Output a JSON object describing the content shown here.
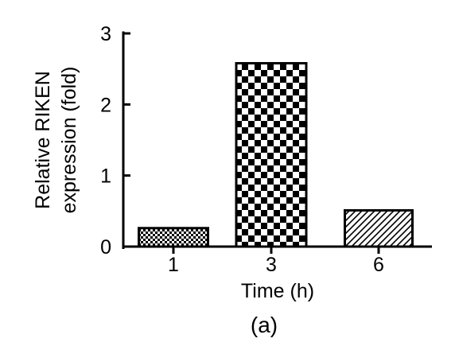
{
  "chart_data": {
    "type": "bar",
    "title": "",
    "panel_label": "(a)",
    "xlabel": "Time (h)",
    "ylabel_lines": [
      "Relative RIKEN",
      "expression (fold)"
    ],
    "categories": [
      "1",
      "3",
      "6"
    ],
    "values": [
      0.26,
      2.58,
      0.51
    ],
    "ylim": [
      0,
      3
    ],
    "yticks": [
      "0",
      "1",
      "2",
      "3"
    ],
    "bar_patterns": [
      "fine-checker",
      "checker",
      "diagonal-hatch"
    ],
    "grid": false,
    "legend": "none",
    "colors": {
      "ink": "#000000",
      "background": "#ffffff"
    }
  }
}
